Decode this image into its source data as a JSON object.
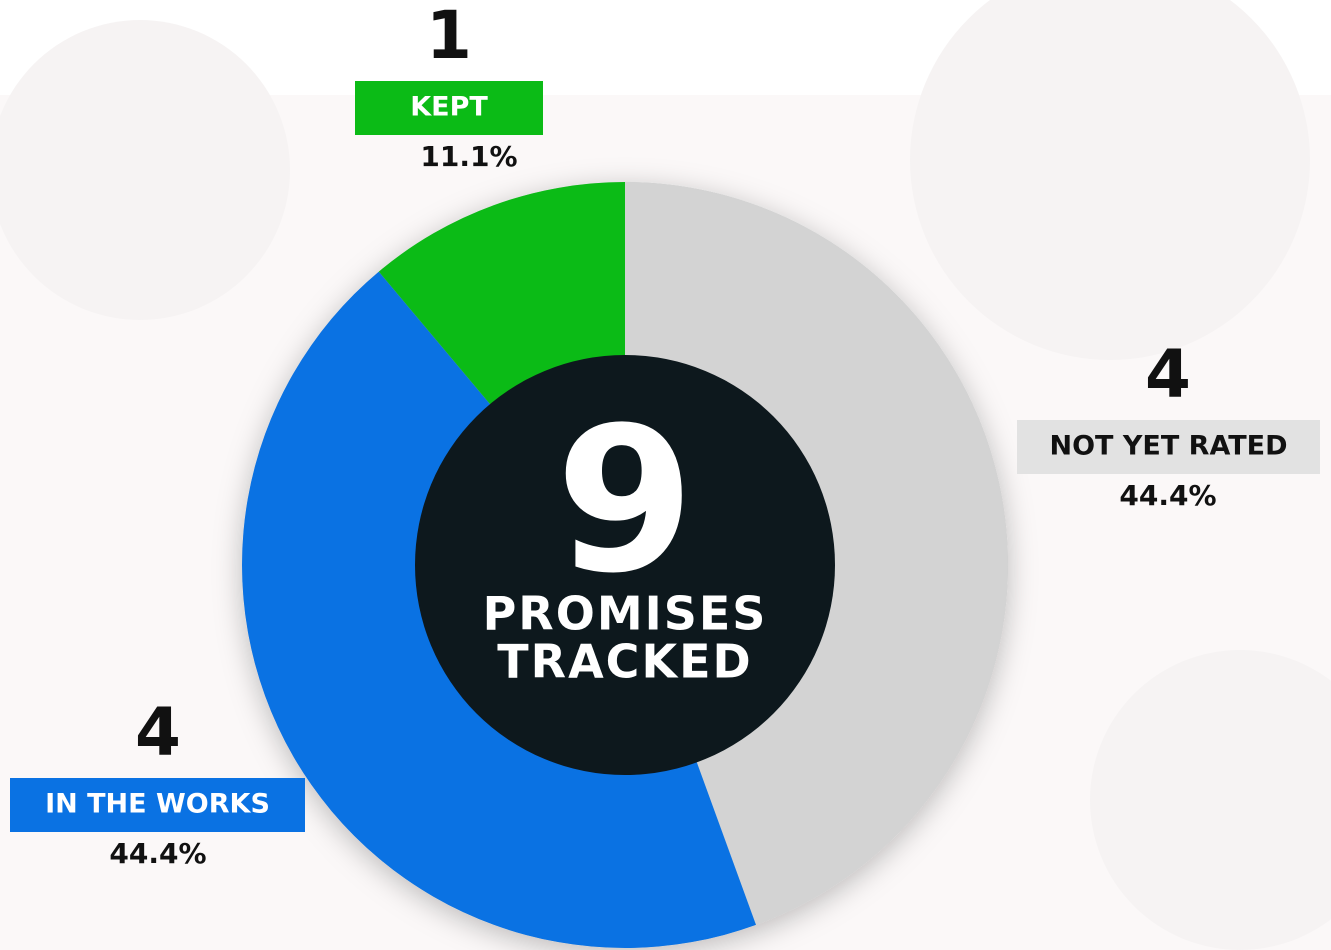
{
  "chart_data": {
    "type": "pie",
    "categories": [
      "NOT YET RATED",
      "IN THE WORKS",
      "KEPT"
    ],
    "values": [
      4,
      4,
      1
    ],
    "percentages": [
      44.4,
      44.4,
      11.1
    ],
    "percentage_labels": [
      "44.4%",
      "44.4%",
      "11.1%"
    ],
    "colors": [
      "#d3d3d3",
      "#0a72e3",
      "#0bbb16"
    ],
    "label_colors": [
      "#e2e2e2",
      "#0a72e3",
      "#0bbb16"
    ],
    "label_text_colors": [
      "#111111",
      "#ffffff",
      "#ffffff"
    ],
    "total": 9,
    "center_lines": [
      "PROMISES",
      "TRACKED"
    ],
    "center_color": "#0d181d"
  }
}
